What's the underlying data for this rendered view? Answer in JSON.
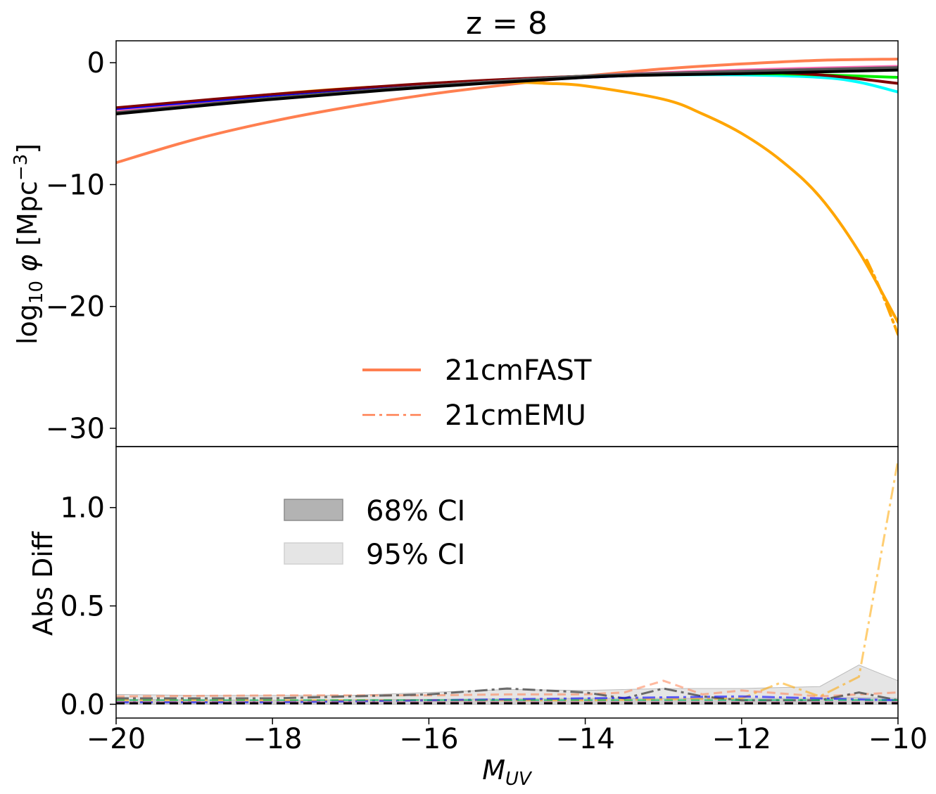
{
  "chart_data": [
    {
      "type": "line",
      "title": "z = 8",
      "xlabel": "",
      "ylabel": "log10 φ [Mpc^-3]",
      "xlim": [
        -20,
        -10
      ],
      "ylim": [
        -31.5,
        1.8
      ],
      "yticks": [
        0,
        -10,
        -20,
        -30
      ],
      "yticklabels": [
        "0",
        "−10",
        "−20",
        "−30"
      ],
      "grid": false,
      "legend": {
        "placement": "bottom-center",
        "entries": [
          {
            "label": "21cmFAST",
            "color": "#ff7f50",
            "style": "solid"
          },
          {
            "label": "21cmEMU",
            "color": "#ff7f50",
            "style": "dashdot"
          }
        ]
      },
      "series": [
        {
          "color": "#ff7f50",
          "x": [
            -20,
            -19,
            -18,
            -17,
            -16,
            -15,
            -14,
            -13,
            -12,
            -11,
            -10
          ],
          "y": [
            -8.2,
            -6.3,
            -4.8,
            -3.6,
            -2.6,
            -1.8,
            -1.1,
            -0.5,
            -0.1,
            0.2,
            0.3
          ]
        },
        {
          "color": "#ffa500",
          "x": [
            -20,
            -19,
            -18,
            -17,
            -16,
            -15,
            -14.5,
            -14,
            -13,
            -12.5,
            -12,
            -11.5,
            -11,
            -10.5,
            -10
          ],
          "y": [
            -4.2,
            -3.3,
            -2.6,
            -2.1,
            -1.8,
            -1.6,
            -1.7,
            -1.9,
            -3.0,
            -4.2,
            -5.8,
            -8,
            -11,
            -15.5,
            -21.3
          ]
        },
        {
          "color": "#ffa500",
          "style": "dashdot",
          "x": [
            -10.4,
            -10.2,
            -10
          ],
          "y": [
            -16.2,
            -19,
            -22.3
          ]
        },
        {
          "color": "#00ffff",
          "x": [
            -20,
            -18,
            -16,
            -14,
            -13,
            -12,
            -11,
            -10.5,
            -10
          ],
          "y": [
            -4.1,
            -2.9,
            -1.9,
            -1.1,
            -1.0,
            -1.0,
            -1.2,
            -1.6,
            -2.4
          ]
        },
        {
          "color": "#00ee00",
          "x": [
            -20,
            -18,
            -16,
            -14,
            -12,
            -11,
            -10
          ],
          "y": [
            -4.0,
            -2.8,
            -1.9,
            -1.1,
            -0.9,
            -1.0,
            -1.2
          ]
        },
        {
          "color": "#800000",
          "x": [
            -20,
            -18,
            -16,
            -14,
            -12,
            -11,
            -10
          ],
          "y": [
            -3.7,
            -2.6,
            -1.7,
            -1.1,
            -0.8,
            -1.0,
            -1.7
          ]
        },
        {
          "color": "#0000ff",
          "x": [
            -20,
            -18,
            -16,
            -14,
            -12,
            -10
          ],
          "y": [
            -3.9,
            -2.8,
            -1.9,
            -1.2,
            -0.7,
            -0.4
          ]
        },
        {
          "color": "#ff69b4",
          "x": [
            -20,
            -18,
            -16,
            -14,
            -12,
            -10
          ],
          "y": [
            -4.0,
            -2.9,
            -1.9,
            -1.1,
            -0.6,
            -0.3
          ]
        },
        {
          "color": "#555555",
          "x": [
            -20,
            -18,
            -16,
            -14,
            -12,
            -10
          ],
          "y": [
            -4.1,
            -2.9,
            -1.9,
            -1.1,
            -0.7,
            -0.4
          ]
        },
        {
          "color": "#000000",
          "x": [
            -20,
            -18,
            -16,
            -14,
            -13,
            -12,
            -10
          ],
          "y": [
            -4.2,
            -3.0,
            -2.0,
            -1.2,
            -1.0,
            -0.9,
            -0.6
          ]
        }
      ]
    },
    {
      "type": "line",
      "title": "",
      "xlabel": "M_UV",
      "ylabel": "Abs Diff",
      "xlim": [
        -20,
        -10
      ],
      "ylim": [
        -0.07,
        1.31
      ],
      "xticks": [
        -20,
        -18,
        -16,
        -14,
        -12,
        -10
      ],
      "xticklabels": [
        "−20",
        "−18",
        "−16",
        "−14",
        "−12",
        "−10"
      ],
      "yticks": [
        0,
        0.5,
        1.0
      ],
      "yticklabels": [
        "0.0",
        "0.5",
        "1.0"
      ],
      "grid": false,
      "legend": {
        "placement": "upper-left",
        "entries": [
          {
            "label": "68% CI",
            "color": "#b3b3b3",
            "style": "patch"
          },
          {
            "label": "95% CI",
            "color": "#e5e5e5",
            "style": "patch"
          }
        ]
      },
      "bands": [
        {
          "name": "95% CI",
          "color": "#e5e5e5",
          "x": [
            -20,
            -19,
            -18,
            -17,
            -16,
            -15,
            -14,
            -13,
            -12,
            -11,
            -10.5,
            -10
          ],
          "lower": [
            0,
            0,
            0,
            0,
            0,
            0,
            0,
            0,
            0,
            0,
            0,
            0
          ],
          "upper": [
            0.05,
            0.045,
            0.045,
            0.045,
            0.06,
            0.075,
            0.07,
            0.08,
            0.08,
            0.09,
            0.2,
            0.12
          ]
        },
        {
          "name": "68% CI",
          "color": "#cfcfcf",
          "x": [
            -20,
            -18,
            -16,
            -14,
            -12,
            -11,
            -10.5,
            -10
          ],
          "lower": [
            0,
            0,
            0,
            0,
            0,
            0,
            0,
            0
          ],
          "upper": [
            0.025,
            0.02,
            0.025,
            0.03,
            0.03,
            0.03,
            0.035,
            0.03
          ]
        }
      ],
      "series": [
        {
          "color": "#ffa500",
          "opacity": 0.55,
          "style": "dashdot",
          "x": [
            -20,
            -18,
            -16,
            -14,
            -12,
            -11.5,
            -11,
            -10.5,
            -10
          ],
          "y": [
            0.02,
            0.02,
            0.02,
            0.02,
            0.03,
            0.11,
            0.04,
            0.14,
            1.24
          ]
        },
        {
          "color": "#ff7f50",
          "opacity": 0.55,
          "style": "dashed",
          "x": [
            -20,
            -18,
            -16,
            -15,
            -14,
            -13.5,
            -13,
            -12.5,
            -12,
            -11,
            -10
          ],
          "y": [
            0.04,
            0.045,
            0.045,
            0.05,
            0.05,
            0.06,
            0.12,
            0.05,
            0.07,
            0.04,
            0.06
          ]
        },
        {
          "color": "#555555",
          "opacity": 0.85,
          "style": "dashdot",
          "x": [
            -20,
            -18,
            -16,
            -15,
            -14,
            -13.5,
            -13,
            -12.5,
            -12,
            -11,
            -10.5,
            -10
          ],
          "y": [
            0.03,
            0.03,
            0.05,
            0.08,
            0.06,
            0.03,
            0.08,
            0.04,
            0.02,
            0.02,
            0.06,
            0.02
          ]
        },
        {
          "color": "#0000ff",
          "opacity": 0.6,
          "style": "dashdot",
          "x": [
            -20,
            -18,
            -16,
            -14,
            -12,
            -10
          ],
          "y": [
            0.01,
            0.01,
            0.02,
            0.03,
            0.04,
            0.02
          ]
        },
        {
          "color": "#00bb66",
          "opacity": 0.6,
          "style": "dashed",
          "x": [
            -20,
            -18,
            -16,
            -14,
            -12,
            -10
          ],
          "y": [
            0.02,
            0.02,
            0.02,
            0.02,
            0.02,
            0.02
          ]
        },
        {
          "color": "#ff69b4",
          "opacity": 0.6,
          "style": "dashed",
          "x": [
            -20,
            -18,
            -16,
            -14,
            -12,
            -10
          ],
          "y": [
            0.01,
            0.01,
            0.01,
            0.01,
            0.01,
            0.01
          ]
        },
        {
          "color": "#000000",
          "opacity": 1.0,
          "style": "dashed",
          "x": [
            -20,
            -18,
            -16,
            -14,
            -12,
            -10
          ],
          "y": [
            0.005,
            0.005,
            0.005,
            0.005,
            0.005,
            0.005
          ]
        }
      ]
    }
  ]
}
